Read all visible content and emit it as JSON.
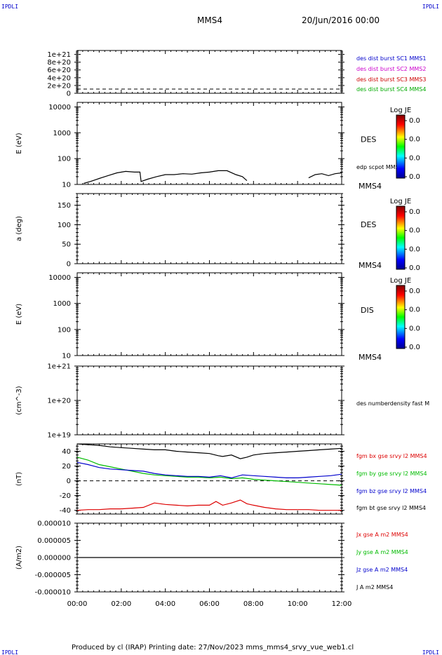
{
  "header": {
    "corner_left": "IPDLI",
    "corner_right": "IPDLI",
    "spacecraft": "MMS4",
    "date": "20/Jun/2016 00:00"
  },
  "footer": {
    "text": "Produced by cl (IRAP)   Printing date: 27/Nov/2023   mms_mms4_srvy_vue_web1.cl",
    "corner_left": "IPDLI",
    "corner_right": "IPDLI"
  },
  "chart_data": [
    {
      "id": "p1",
      "type": "line",
      "ylim": [
        0,
        1.1e+21
      ],
      "yticks": [
        "1e+21",
        "8e+20",
        "6e+20",
        "4e+20",
        "2e+20",
        "0"
      ],
      "tick_values": [
        1e+21,
        8e+20,
        6e+20,
        4e+20,
        2e+20,
        0
      ],
      "legend": [
        {
          "name": "des dist burst SC1 MMS1",
          "color": "#0000cc"
        },
        {
          "name": "des dist burst SC2 MMS2",
          "color": "#cc00cc"
        },
        {
          "name": "des dist burst SC3 MMS3",
          "color": "#cc0000"
        },
        {
          "name": "des dist burst SC4 MMS4",
          "color": "#00aa00"
        }
      ],
      "series": []
    },
    {
      "id": "p2",
      "type": "line",
      "ylabel": "E (eV)",
      "scale": "log",
      "ylim": [
        10,
        15000
      ],
      "yticks": [
        "10000",
        "1000",
        "100",
        "10"
      ],
      "tick_values": [
        10000,
        1000,
        100,
        10
      ],
      "side_label": "DES",
      "side_label_bottom": "MMS4",
      "legend": [
        {
          "name": "edp scpot MMS4",
          "color": "#000000"
        }
      ],
      "colorbar": {
        "title": "Log JE",
        "ticks": [
          "0.0",
          "0.0",
          "0.0",
          "0.0"
        ]
      },
      "series": [
        {
          "name": "edp scpot MMS4",
          "color": "#000000",
          "segments": [
            {
              "x": [
                0.3,
                0.6,
                1.0,
                1.4,
                1.8,
                2.2,
                2.6,
                2.85,
                2.9,
                3.2,
                3.6,
                4.0,
                4.4,
                4.8,
                5.2,
                5.6,
                6.0,
                6.4,
                6.8,
                7.2,
                7.5,
                7.7
              ],
              "y": [
                11,
                13,
                17,
                22,
                28,
                32,
                30,
                30,
                13,
                16,
                20,
                24,
                24,
                26,
                25,
                28,
                30,
                34,
                34,
                24,
                20,
                14
              ]
            },
            {
              "x": [
                10.5,
                10.8,
                11.1,
                11.4,
                11.7,
                12.0
              ],
              "y": [
                18,
                24,
                26,
                22,
                26,
                28
              ]
            }
          ]
        }
      ]
    },
    {
      "id": "p3",
      "type": "heatmap",
      "ylabel": "a (deg)",
      "ylim": [
        0,
        180
      ],
      "yticks": [
        "150",
        "100",
        "50",
        "0"
      ],
      "tick_values": [
        150,
        100,
        50,
        0
      ],
      "side_label": "DES",
      "side_label_bottom": "MMS4",
      "colorbar": {
        "title": "Log JE",
        "ticks": [
          "0.0",
          "0.0",
          "0.0",
          "0.0"
        ]
      },
      "series": []
    },
    {
      "id": "p4",
      "type": "heatmap",
      "ylabel": "E (eV)",
      "scale": "log",
      "ylim": [
        10,
        15000
      ],
      "yticks": [
        "10000",
        "1000",
        "100",
        "10"
      ],
      "tick_values": [
        10000,
        1000,
        100,
        10
      ],
      "side_label": "DIS",
      "side_label_bottom": "MMS4",
      "colorbar": {
        "title": "Log JE",
        "ticks": [
          "0.0",
          "0.0",
          "0.0",
          "0.0"
        ]
      },
      "series": []
    },
    {
      "id": "p5",
      "type": "line",
      "ylabel": "(cm^-3)",
      "scale": "log",
      "ylim": [
        1e+19,
        1e+21
      ],
      "yticks": [
        "1e+21",
        "1e+20",
        "1e+19"
      ],
      "tick_values": [
        1e+21,
        1e+20,
        1e+19
      ],
      "legend": [
        {
          "name": "des numberdensity fast M",
          "color": "#000000"
        }
      ],
      "series": []
    },
    {
      "id": "p6",
      "type": "line",
      "ylabel": "(nT)",
      "ylim": [
        -45,
        50
      ],
      "yticks": [
        "40",
        "20",
        "0",
        "-20",
        "-40"
      ],
      "tick_values": [
        40,
        20,
        0,
        -20,
        -40
      ],
      "legend": [
        {
          "name": "fgm bx gse srvy l2 MMS4",
          "color": "#dd0000"
        },
        {
          "name": "fgm by gse srvy l2 MMS4",
          "color": "#00bb00"
        },
        {
          "name": "fgm bz gse srvy l2 MMS4",
          "color": "#0000cc"
        },
        {
          "name": "fgm bt gse srvy l2 MMS4",
          "color": "#000000"
        }
      ],
      "series": [
        {
          "name": "fgm bt gse srvy l2 MMS4",
          "color": "#000000",
          "segments": [
            {
              "x": [
                0,
                0.5,
                1,
                1.5,
                2,
                2.5,
                3,
                3.5,
                4,
                4.5,
                5,
                5.5,
                6,
                6.4,
                6.6,
                7,
                7.4,
                7.7,
                8,
                8.5,
                9,
                9.5,
                10,
                10.5,
                11,
                11.5,
                12
              ],
              "y": [
                50,
                49,
                48,
                46,
                45,
                44,
                43,
                42,
                42,
                40,
                39,
                38,
                37,
                34,
                33,
                35,
                30,
                32,
                35,
                37,
                38,
                39,
                40,
                41,
                42,
                43,
                44
              ]
            }
          ]
        },
        {
          "name": "fgm by gse srvy l2 MMS4",
          "color": "#00bb00",
          "segments": [
            {
              "x": [
                0,
                0.5,
                1,
                1.5,
                2,
                2.5,
                3,
                3.5,
                4,
                4.5,
                5,
                5.5,
                6,
                6.5,
                7,
                7.5,
                8,
                8.5,
                9,
                9.5,
                10,
                10.5,
                11,
                11.5,
                12
              ],
              "y": [
                32,
                28,
                22,
                19,
                16,
                13,
                10,
                8,
                7,
                6,
                5,
                5,
                4,
                5,
                3,
                4,
                2,
                1,
                0,
                -1,
                -2,
                -3,
                -4,
                -5,
                -6
              ]
            }
          ]
        },
        {
          "name": "fgm bz gse srvy l2 MMS4",
          "color": "#0000cc",
          "segments": [
            {
              "x": [
                0,
                0.5,
                1,
                1.5,
                2,
                2.5,
                3,
                3.5,
                4,
                4.5,
                5,
                5.5,
                6,
                6.5,
                7,
                7.5,
                8,
                8.5,
                9,
                9.5,
                10,
                10.5,
                11,
                11.5,
                12
              ],
              "y": [
                25,
                22,
                18,
                16,
                15,
                14,
                13,
                10,
                8,
                7,
                6,
                6,
                5,
                7,
                4,
                8,
                7,
                6,
                5,
                4,
                4,
                5,
                6,
                7,
                9
              ]
            }
          ]
        },
        {
          "name": "fgm bx gse srvy l2 MMS4",
          "color": "#dd0000",
          "segments": [
            {
              "x": [
                0,
                0.5,
                1,
                1.5,
                2,
                2.5,
                3,
                3.5,
                4,
                4.5,
                5,
                5.5,
                6,
                6.3,
                6.6,
                7,
                7.4,
                7.7,
                8,
                8.5,
                9,
                9.5,
                10,
                10.5,
                11,
                11.5,
                12
              ],
              "y": [
                -40,
                -39,
                -39,
                -38,
                -38,
                -37,
                -36,
                -30,
                -32,
                -33,
                -34,
                -33,
                -33,
                -28,
                -33,
                -30,
                -26,
                -31,
                -33,
                -36,
                -38,
                -39,
                -39,
                -39,
                -40,
                -40,
                -40
              ]
            }
          ]
        }
      ],
      "dashed_zero": true
    },
    {
      "id": "p7",
      "type": "line",
      "ylabel": "(A/m2)",
      "ylim": [
        -1e-05,
        1e-05
      ],
      "yticks": [
        "0.000010",
        "0.000005",
        "0.000000",
        "-0.000005",
        "-0.000010"
      ],
      "tick_values": [
        1e-05,
        5e-06,
        0,
        -5e-06,
        -1e-05
      ],
      "legend": [
        {
          "name": "Jx gse A m2 MMS4",
          "color": "#dd0000"
        },
        {
          "name": "Jy gse A m2 MMS4",
          "color": "#00bb00"
        },
        {
          "name": "Jz gse A m2 MMS4",
          "color": "#0000cc"
        },
        {
          "name": "J A m2 MMS4",
          "color": "#000000"
        }
      ],
      "series": [
        {
          "name": "J A m2 MMS4",
          "color": "#000000",
          "segments": [
            {
              "x": [
                0,
                12
              ],
              "y": [
                0,
                0
              ]
            }
          ]
        }
      ]
    }
  ],
  "x_axis": {
    "range": [
      0,
      12
    ],
    "ticks": [
      "00:00",
      "02:00",
      "04:00",
      "06:00",
      "08:00",
      "10:00",
      "12:00"
    ],
    "tick_values": [
      0,
      2,
      4,
      6,
      8,
      10,
      12
    ]
  }
}
